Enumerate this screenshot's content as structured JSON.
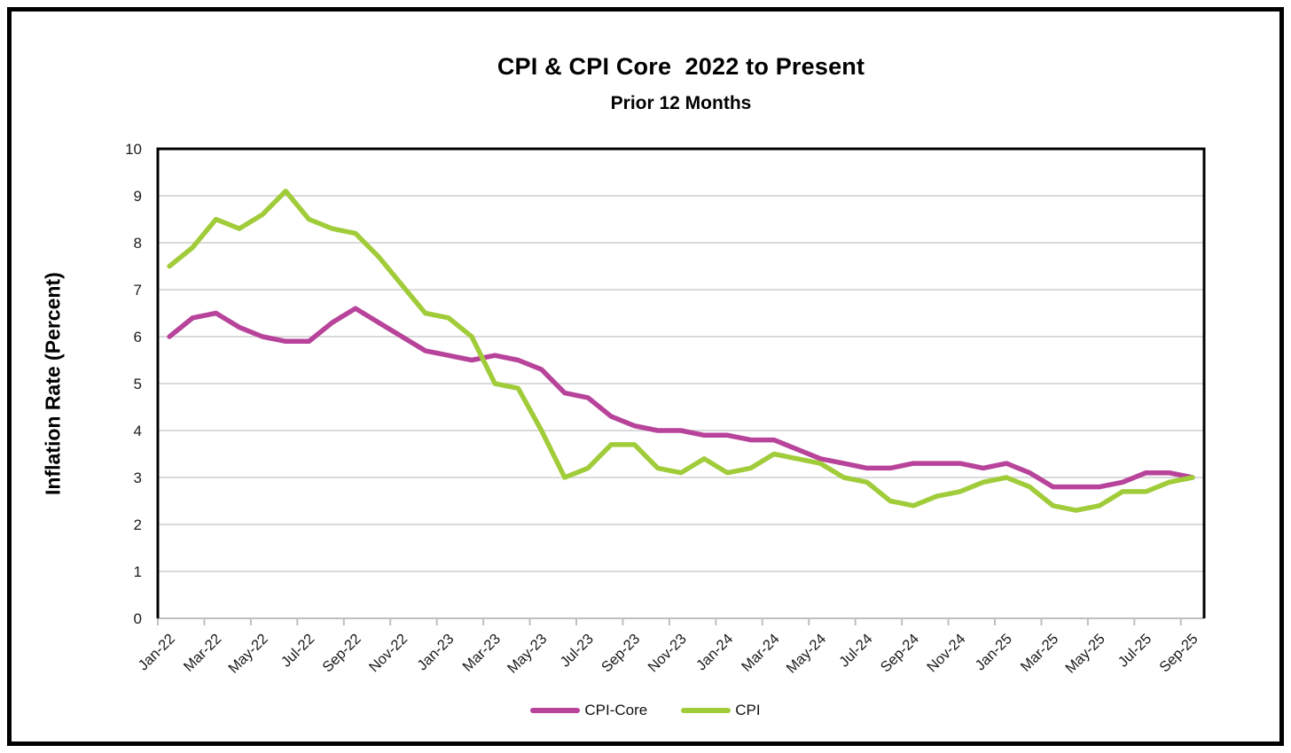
{
  "chart_data": {
    "type": "line",
    "title": "CPI & CPI Core  2022 to Present",
    "subtitle": "Prior 12 Months",
    "xlabel": "",
    "ylabel": "Inflation Rate (Percent)",
    "ylim": [
      0,
      10
    ],
    "y_ticks": [
      0,
      1,
      2,
      3,
      4,
      5,
      6,
      7,
      8,
      9,
      10
    ],
    "x_label_interval": 2,
    "grid": "horizontal-major",
    "legend_position": "bottom-center",
    "categories": [
      "Jan-22",
      "Feb-22",
      "Mar-22",
      "Apr-22",
      "May-22",
      "Jun-22",
      "Jul-22",
      "Aug-22",
      "Sep-22",
      "Oct-22",
      "Nov-22",
      "Dec-22",
      "Jan-23",
      "Feb-23",
      "Mar-23",
      "Apr-23",
      "May-23",
      "Jun-23",
      "Jul-23",
      "Aug-23",
      "Sep-23",
      "Oct-23",
      "Nov-23",
      "Dec-23",
      "Jan-24",
      "Feb-24",
      "Mar-24",
      "Apr-24",
      "May-24",
      "Jun-24",
      "Jul-24",
      "Aug-24",
      "Sep-24",
      "Oct-24",
      "Nov-24",
      "Dec-24",
      "Jan-25",
      "Feb-25",
      "Mar-25",
      "Apr-25",
      "May-25",
      "Jun-25",
      "Jul-25",
      "Aug-25",
      "Sep-25"
    ],
    "series": [
      {
        "name": "CPI-Core",
        "color": "#B8439A",
        "values": [
          6.0,
          6.4,
          6.5,
          6.2,
          6.0,
          5.9,
          5.9,
          6.3,
          6.6,
          6.3,
          6.0,
          5.7,
          5.6,
          5.5,
          5.6,
          5.5,
          5.3,
          4.8,
          4.7,
          4.3,
          4.1,
          4.0,
          4.0,
          3.9,
          3.9,
          3.8,
          3.8,
          3.6,
          3.4,
          3.3,
          3.2,
          3.2,
          3.3,
          3.3,
          3.3,
          3.2,
          3.3,
          3.1,
          2.8,
          2.8,
          2.8,
          2.9,
          3.1,
          3.1,
          3.0
        ]
      },
      {
        "name": "CPI",
        "color": "#A1CC3A",
        "values": [
          7.5,
          7.9,
          8.5,
          8.3,
          8.6,
          9.1,
          8.5,
          8.3,
          8.2,
          7.7,
          7.1,
          6.5,
          6.4,
          6.0,
          5.0,
          4.9,
          4.0,
          3.0,
          3.2,
          3.7,
          3.7,
          3.2,
          3.1,
          3.4,
          3.1,
          3.2,
          3.5,
          3.4,
          3.3,
          3.0,
          2.9,
          2.5,
          2.4,
          2.6,
          2.7,
          2.9,
          3.0,
          2.8,
          2.4,
          2.3,
          2.4,
          2.7,
          2.7,
          2.9,
          3.0
        ]
      }
    ]
  },
  "styles": {
    "gridline_color": "#DADADA",
    "plot_border_color": "#000000",
    "x_axis_line_color": "#BFBFBF",
    "tick_label_color": "#1A1A1A",
    "outer_border_color": "#000000"
  }
}
